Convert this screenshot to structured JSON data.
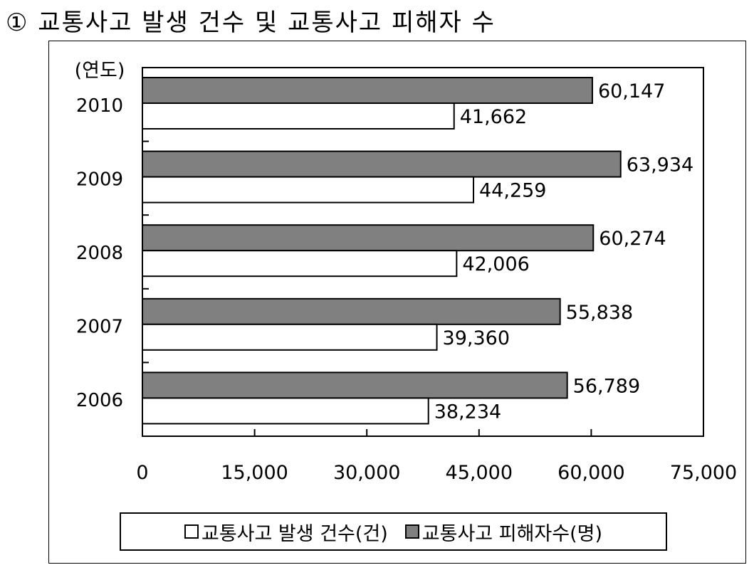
{
  "page": {
    "title": "① 교통사고 발생 건수 및 교통사고 피해자 수"
  },
  "chart_data": {
    "type": "bar",
    "orientation": "horizontal",
    "ylabel": "(연도)",
    "categories": [
      "2010",
      "2009",
      "2008",
      "2007",
      "2006"
    ],
    "series": [
      {
        "name": "교통사고 피해자수(명)",
        "color": "#808080",
        "values": [
          60147,
          63934,
          60274,
          55838,
          56789
        ],
        "labels": [
          "60,147",
          "63,934",
          "60,274",
          "55,838",
          "56,789"
        ]
      },
      {
        "name": "교통사고 발생 건수(건)",
        "color": "#ffffff",
        "values": [
          41662,
          44259,
          42006,
          39360,
          38234
        ],
        "labels": [
          "41,662",
          "44,259",
          "42,006",
          "39,360",
          "38,234"
        ]
      }
    ],
    "xlim": [
      0,
      75000
    ],
    "xticks": [
      0,
      15000,
      30000,
      45000,
      60000,
      75000
    ],
    "xtick_labels": [
      "0",
      "15,000",
      "30,000",
      "45,000",
      "60,000",
      "75,000"
    ],
    "legend_position": "bottom",
    "grid": false
  },
  "legend": [
    {
      "label": "교통사고 발생 건수(건)",
      "color": "#ffffff"
    },
    {
      "label": "교통사고 피해자수(명)",
      "color": "#808080"
    }
  ]
}
